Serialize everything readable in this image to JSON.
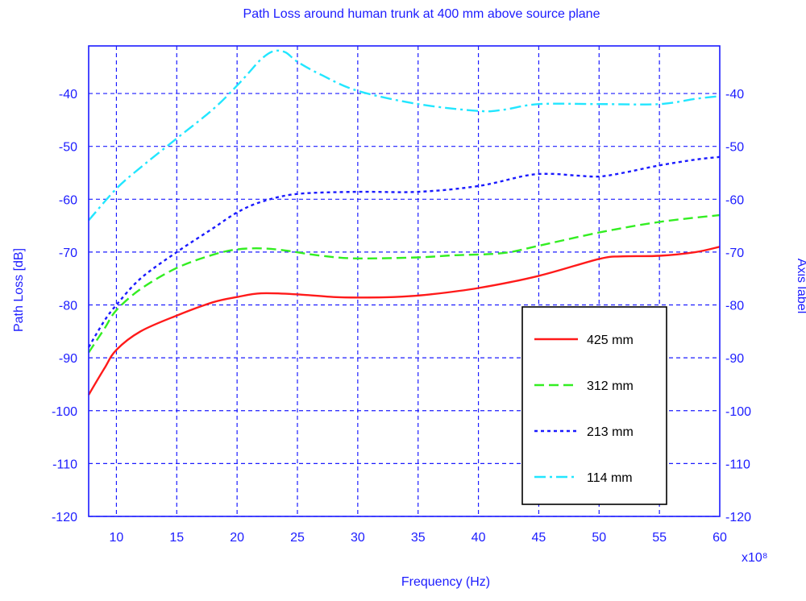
{
  "chart_data": {
    "type": "line",
    "title": "Path Loss around human trunk at 400 mm above source plane",
    "xlabel": "Frequency (Hz)",
    "ylabel": "Path Loss [dB]",
    "ylabel_right": "Axis label",
    "x_multiplier": "x10⁸",
    "xlim": [
      7.7,
      60
    ],
    "ylim": [
      -120,
      -31
    ],
    "x_ticks": [
      "10",
      "15",
      "20",
      "25",
      "30",
      "35",
      "40",
      "45",
      "50",
      "55",
      "60"
    ],
    "y_ticks": [
      "-40",
      "-50",
      "-60",
      "-70",
      "-80",
      "-90",
      "-100",
      "-110",
      "-120"
    ],
    "grid": true,
    "legend_position": "lower-right",
    "colors": {
      "axis": "#1c1cff",
      "grid": "#1c1cff"
    },
    "series": [
      {
        "name": "425 mm",
        "color": "#ff1a1a",
        "dash": "solid",
        "x": [
          7.7,
          9,
          10,
          12,
          15,
          18,
          20,
          22,
          25,
          28,
          30,
          33,
          36,
          40,
          45,
          50,
          52,
          55,
          58,
          60
        ],
        "y": [
          -97,
          -92,
          -88.5,
          -85,
          -82,
          -79.5,
          -78.5,
          -77.8,
          -78,
          -78.5,
          -78.6,
          -78.5,
          -78,
          -76.8,
          -74.5,
          -71.3,
          -70.8,
          -70.7,
          -70,
          -69
        ]
      },
      {
        "name": "312 mm",
        "color": "#33ee22",
        "dash": "dashed",
        "x": [
          7.7,
          9,
          10,
          12,
          15,
          18,
          20,
          22,
          24,
          27,
          30,
          35,
          38,
          42,
          45,
          50,
          55,
          60
        ],
        "y": [
          -89,
          -84.5,
          -81,
          -77,
          -73,
          -70.5,
          -69.5,
          -69.3,
          -69.7,
          -70.7,
          -71.2,
          -71,
          -70.6,
          -70.2,
          -68.8,
          -66.3,
          -64.3,
          -63
        ]
      },
      {
        "name": "213 mm",
        "color": "#1a1aff",
        "dash": "dotted",
        "x": [
          7.7,
          9,
          10,
          12,
          15,
          18,
          20,
          22,
          25,
          30,
          35,
          40,
          44,
          46,
          48,
          50,
          52,
          55,
          58,
          60
        ],
        "y": [
          -88,
          -83,
          -80,
          -75,
          -70,
          -65.5,
          -62.5,
          -60.5,
          -59,
          -58.6,
          -58.6,
          -57.5,
          -55.5,
          -55.2,
          -55.5,
          -55.7,
          -55,
          -53.6,
          -52.5,
          -52
        ]
      },
      {
        "name": "114 mm",
        "color": "#22e6ff",
        "dash": "dashdot",
        "x": [
          7.7,
          10,
          12,
          15,
          18,
          20,
          21,
          22,
          23,
          24,
          25,
          27,
          30,
          35,
          40,
          42,
          45,
          50,
          55,
          58,
          60
        ],
        "y": [
          -64,
          -58,
          -54,
          -48.5,
          -43,
          -38.5,
          -36,
          -33.5,
          -32,
          -32.2,
          -34,
          -36.5,
          -39.5,
          -42,
          -43.3,
          -43.1,
          -42,
          -42,
          -42,
          -41,
          -40.5
        ]
      }
    ]
  }
}
